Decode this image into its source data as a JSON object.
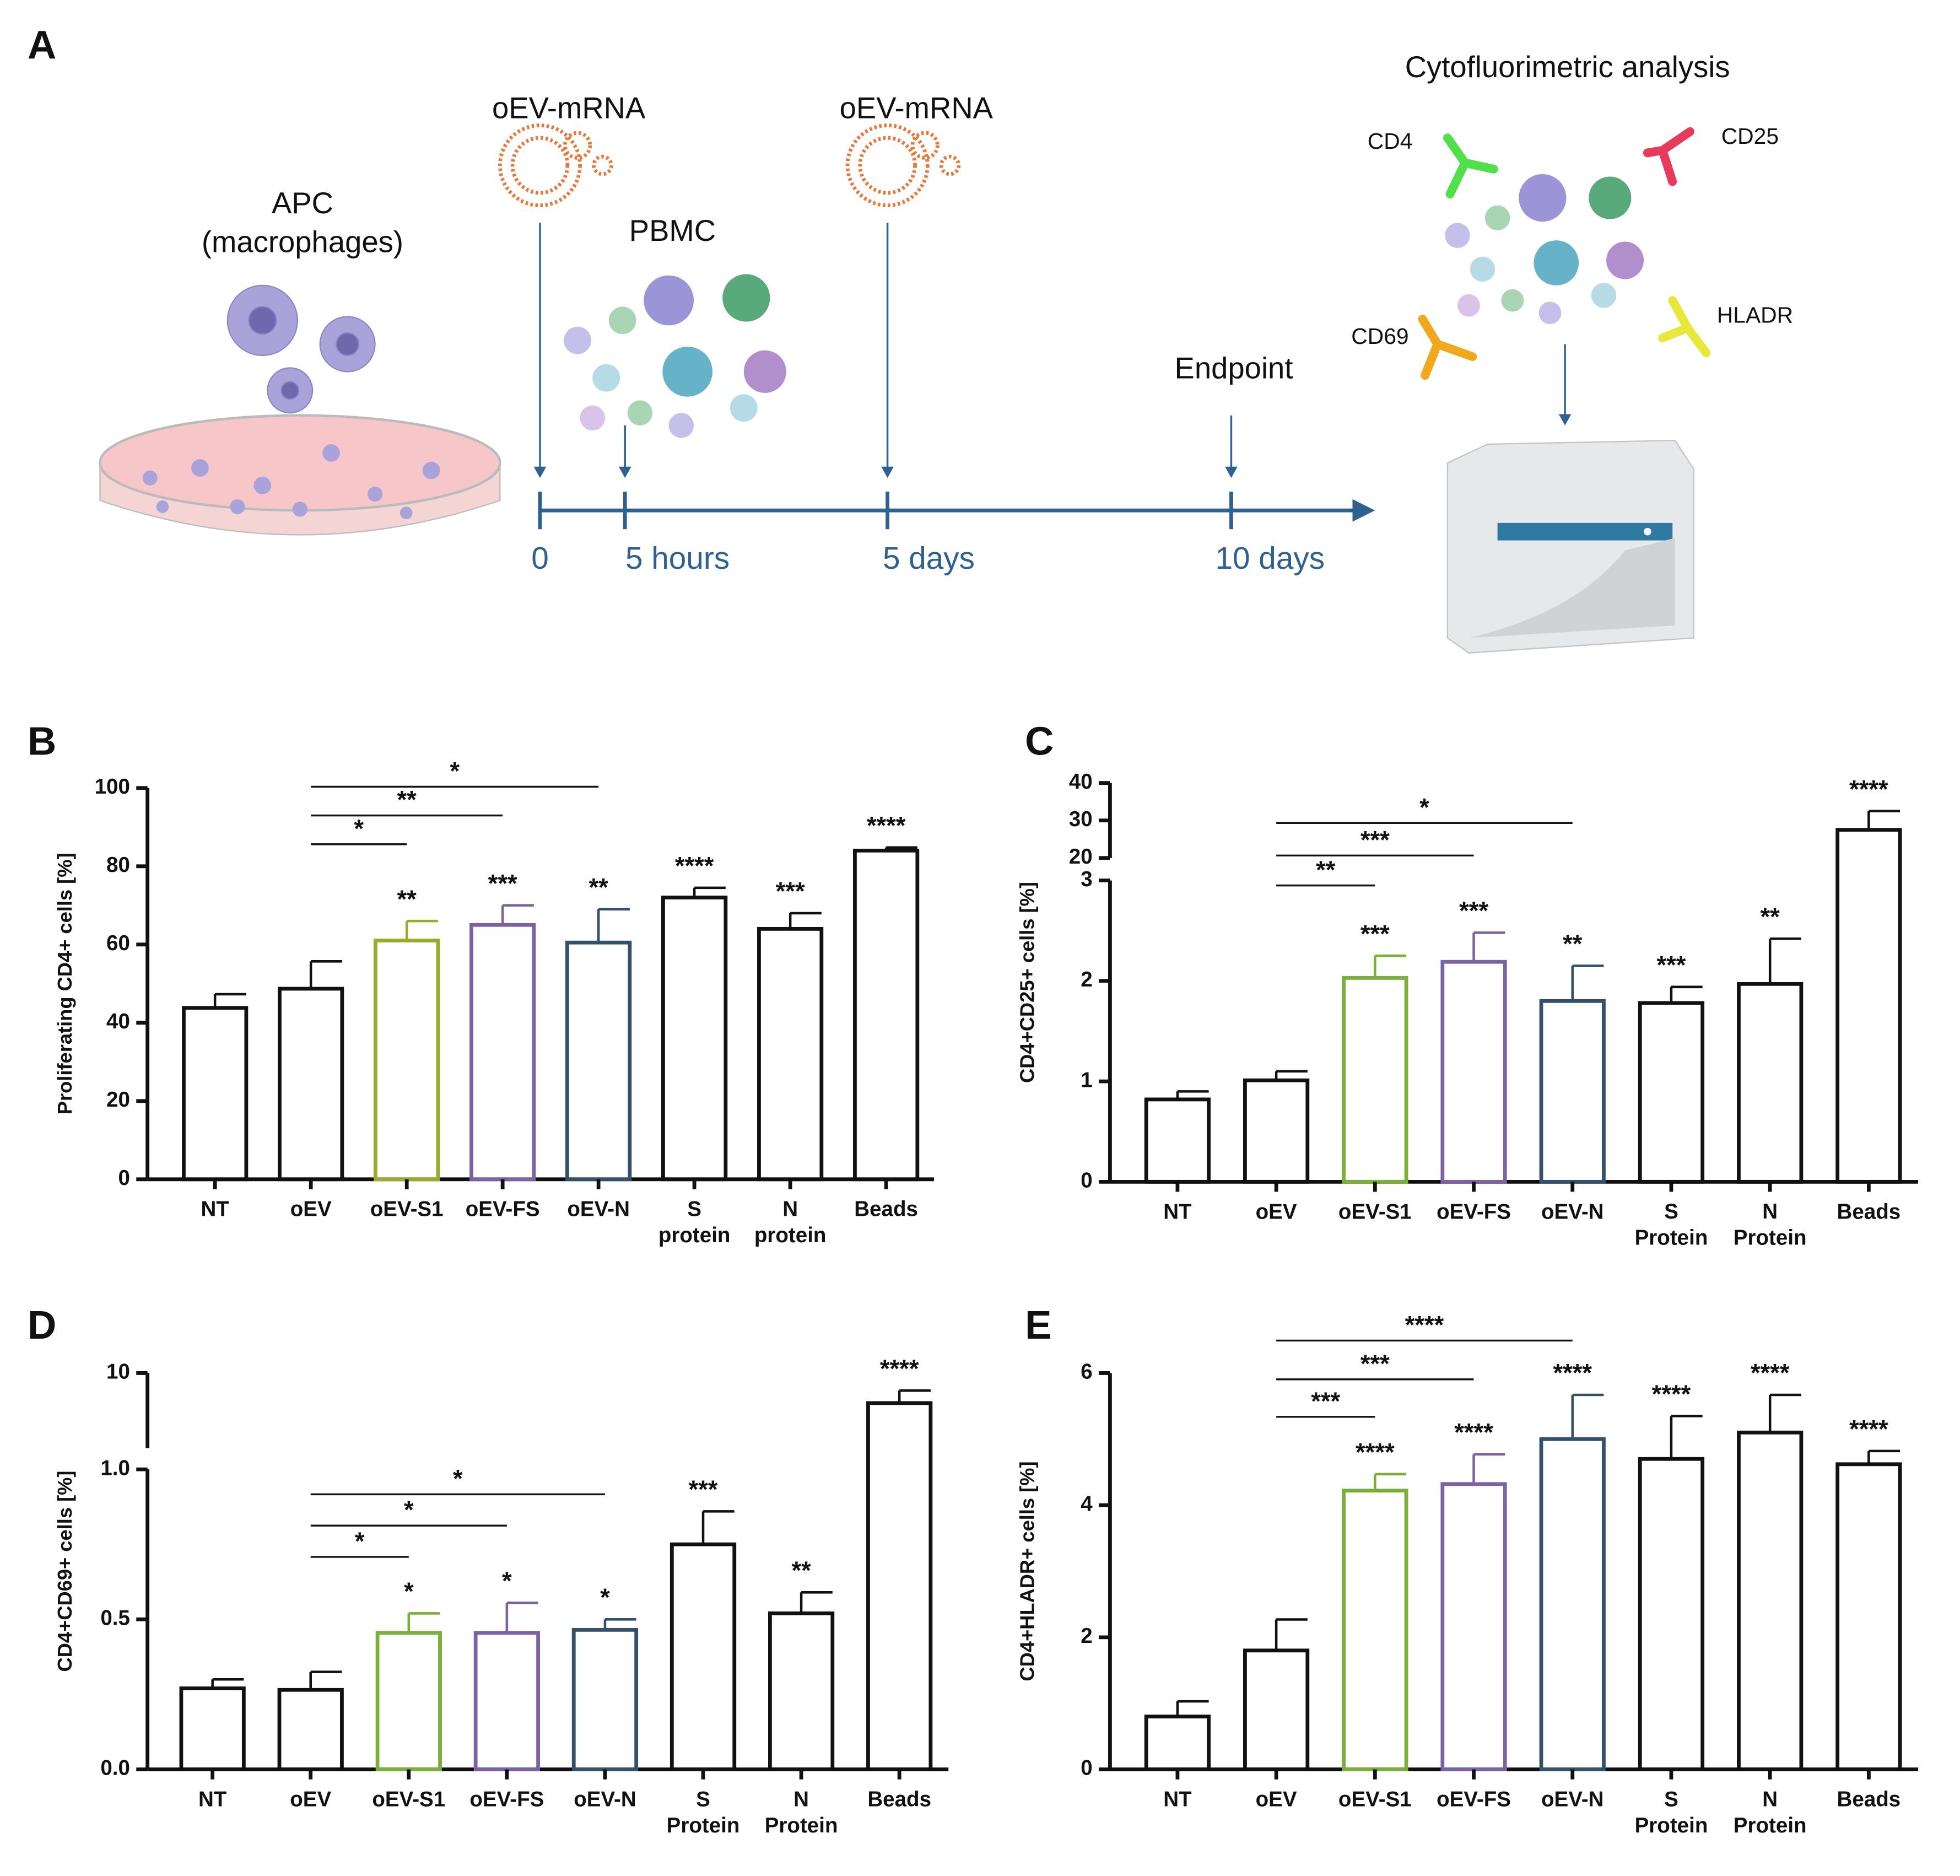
{
  "diagram": {
    "panel": "A",
    "apc": [
      "APC",
      "(macrophages)"
    ],
    "treatments": [
      "oEV-mRNA",
      "oEV-mRNA"
    ],
    "pbmc": "PBMC",
    "endpoint": "Endpoint",
    "timeline": [
      "0",
      "5 hours",
      "5 days",
      "10 days"
    ],
    "analysis": "Cytofluorimetric analysis",
    "markers": [
      "CD4",
      "CD25",
      "CD69",
      "HLADR"
    ]
  },
  "chart_data": [
    {
      "type": "bar",
      "panel": "B",
      "y_label": "Proliferating CD4+ cells [%]",
      "categories": [
        "NT",
        "oEV",
        "oEV-S1",
        "oEV-FS",
        "oEV-N",
        "S protein",
        "N protein",
        "Beads"
      ],
      "values": [
        43.8,
        48.7,
        61,
        65,
        60.5,
        72,
        64,
        84
      ],
      "errors": [
        3.5,
        7,
        5,
        5,
        8.5,
        2.5,
        4,
        0.8
      ],
      "colors": [
        "#111111",
        "#111111",
        "#9aab2c",
        "#7b62a3",
        "#34516b",
        "#111111",
        "#111111",
        "#111111"
      ],
      "annotations": [
        null,
        null,
        "**",
        "***",
        "**",
        "****",
        "***",
        "****"
      ],
      "comparisons": [
        {
          "pair": [
            "oEV",
            "oEV-S1"
          ],
          "label": "*"
        },
        {
          "pair": [
            "oEV",
            "oEV-FS"
          ],
          "label": "**"
        },
        {
          "pair": [
            "oEV",
            "oEV-N"
          ],
          "label": "*"
        }
      ],
      "ylim": [
        0,
        100
      ],
      "yticks": [
        0,
        20,
        40,
        60,
        80,
        100
      ]
    },
    {
      "type": "bar",
      "panel": "C",
      "y_label": "CD4+CD25+ cells [%]",
      "categories": [
        "NT",
        "oEV",
        "oEV-S1",
        "oEV-FS",
        "oEV-N",
        "S Protein",
        "N Protein",
        "Beads"
      ],
      "values": [
        0.82,
        1.01,
        2.03,
        2.19,
        1.8,
        1.78,
        1.97,
        27.5
      ],
      "errors": [
        0.08,
        0.09,
        0.22,
        0.29,
        0.35,
        0.16,
        0.45,
        5
      ],
      "colors": [
        "#111111",
        "#111111",
        "#7ab03a",
        "#7b62a3",
        "#34516b",
        "#111111",
        "#111111",
        "#111111"
      ],
      "annotations": [
        null,
        null,
        "***",
        "***",
        "**",
        "***",
        "**",
        "****"
      ],
      "comparisons": [
        {
          "pair": [
            "oEV",
            "oEV-S1"
          ],
          "label": "**"
        },
        {
          "pair": [
            "oEV",
            "oEV-FS"
          ],
          "label": "***"
        },
        {
          "pair": [
            "oEV",
            "oEV-N"
          ],
          "label": "*"
        }
      ],
      "ylim": [
        0,
        40
      ],
      "ybreak": [
        3,
        20
      ],
      "yticks": [
        0,
        1,
        2,
        3,
        20,
        30,
        40
      ]
    },
    {
      "type": "bar",
      "panel": "D",
      "y_label": "CD4+CD69+ cells [%]",
      "categories": [
        "NT",
        "oEV",
        "oEV-S1",
        "oEV-FS",
        "oEV-N",
        "S Protein",
        "N Protein",
        "Beads"
      ],
      "values": [
        0.27,
        0.265,
        0.455,
        0.455,
        0.465,
        0.75,
        0.52,
        8.8
      ],
      "errors": [
        0.03,
        0.06,
        0.065,
        0.1,
        0.035,
        0.11,
        0.07,
        0.5
      ],
      "colors": [
        "#111111",
        "#111111",
        "#7ab03a",
        "#7b62a3",
        "#34516b",
        "#111111",
        "#111111",
        "#111111"
      ],
      "annotations": [
        null,
        null,
        "*",
        "*",
        "*",
        "***",
        "**",
        "****"
      ],
      "comparisons": [
        {
          "pair": [
            "oEV",
            "oEV-S1"
          ],
          "label": "*"
        },
        {
          "pair": [
            "oEV",
            "oEV-FS"
          ],
          "label": "*"
        },
        {
          "pair": [
            "oEV",
            "oEV-N"
          ],
          "label": "*"
        }
      ],
      "ylim": [
        0,
        10
      ],
      "ybreak": [
        1,
        7
      ],
      "yticks": [
        {
          "value": 0,
          "label": "0.0"
        },
        {
          "value": 0.5,
          "label": "0.5"
        },
        {
          "value": 1,
          "label": "1.0"
        },
        10
      ]
    },
    {
      "type": "bar",
      "panel": "E",
      "y_label": "CD4+HLADR+ cells [%]",
      "categories": [
        "NT",
        "oEV",
        "oEV-S1",
        "oEV-FS",
        "oEV-N",
        "S Protein",
        "N Protein",
        "Beads"
      ],
      "values": [
        0.8,
        1.8,
        4.22,
        4.32,
        5.0,
        4.7,
        5.1,
        4.62
      ],
      "errors": [
        0.23,
        0.47,
        0.25,
        0.45,
        0.67,
        0.65,
        0.57,
        0.2
      ],
      "colors": [
        "#111111",
        "#111111",
        "#7ab03a",
        "#7b62a3",
        "#34516b",
        "#111111",
        "#111111",
        "#111111"
      ],
      "annotations": [
        null,
        null,
        "****",
        "****",
        "****",
        "****",
        "****",
        "****"
      ],
      "comparisons": [
        {
          "pair": [
            "oEV",
            "oEV-S1"
          ],
          "label": "***"
        },
        {
          "pair": [
            "oEV",
            "oEV-FS"
          ],
          "label": "***"
        },
        {
          "pair": [
            "oEV",
            "oEV-N"
          ],
          "label": "****"
        }
      ],
      "ylim": [
        0,
        6
      ],
      "yticks": [
        0,
        2,
        4,
        6
      ]
    }
  ]
}
